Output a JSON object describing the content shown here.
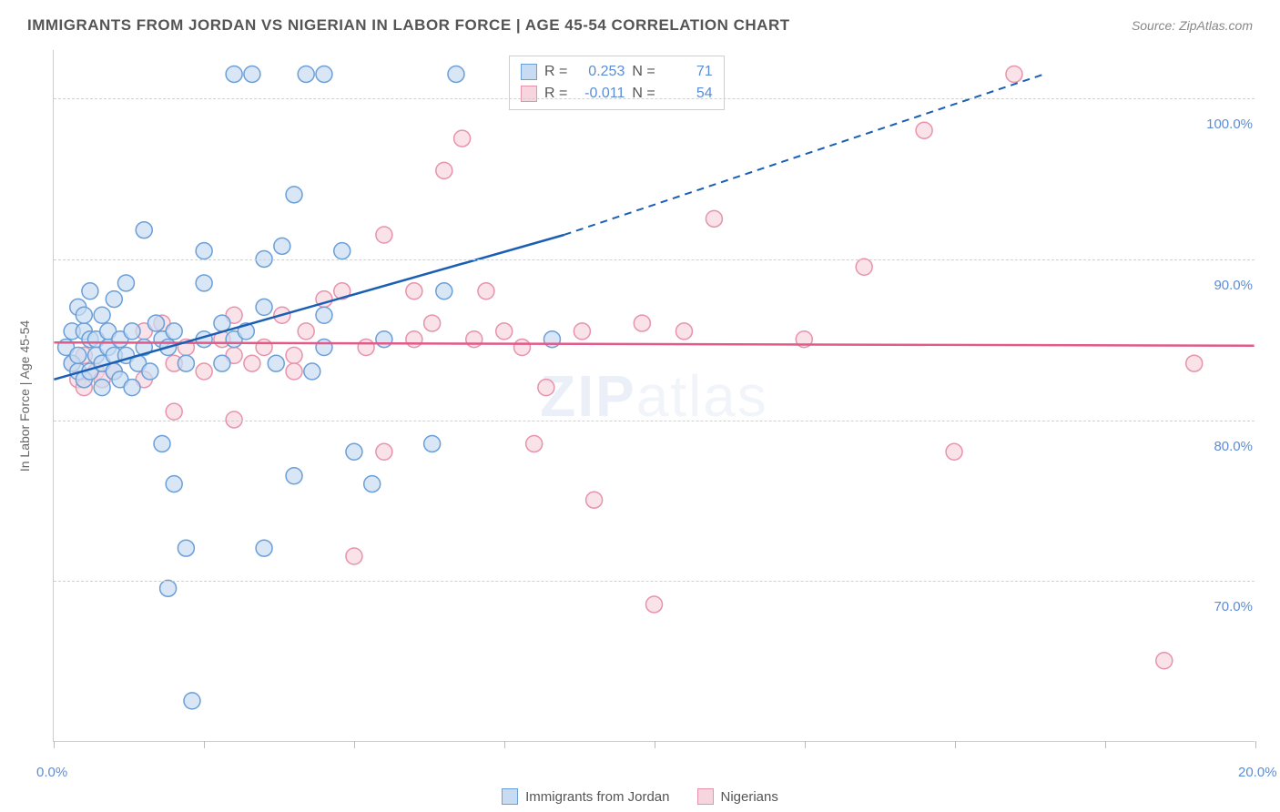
{
  "title": "IMMIGRANTS FROM JORDAN VS NIGERIAN IN LABOR FORCE | AGE 45-54 CORRELATION CHART",
  "source": "Source: ZipAtlas.com",
  "watermark_a": "ZIP",
  "watermark_b": "atlas",
  "ylabel": "In Labor Force | Age 45-54",
  "chart": {
    "type": "scatter",
    "xlim": [
      0,
      20
    ],
    "ylim": [
      60,
      103
    ],
    "x_ticks": [
      0,
      2.5,
      5,
      7.5,
      10,
      12.5,
      15,
      17.5,
      20
    ],
    "x_tick_labels": {
      "0": "0.0%",
      "20": "20.0%"
    },
    "y_gridlines": [
      70,
      80,
      90,
      100
    ],
    "y_tick_labels": {
      "70": "70.0%",
      "80": "80.0%",
      "90": "90.0%",
      "100": "100.0%"
    },
    "background_color": "#ffffff",
    "grid_color": "#d0d0d0",
    "axis_color": "#cccccc",
    "marker_radius": 9,
    "marker_stroke_width": 1.5,
    "trend_line_width": 2.5,
    "series": {
      "jordan": {
        "label": "Immigrants from Jordan",
        "fill": "#c7dbf2",
        "stroke": "#6a9fd8",
        "line_color": "#1a5fb4",
        "R": "0.253",
        "N": "71",
        "trend": {
          "x1": 0,
          "y1": 82.5,
          "x2": 8.5,
          "y2": 91.5,
          "dash_x2": 16.5,
          "dash_y2": 101.5
        },
        "points": [
          [
            0.2,
            84.5
          ],
          [
            0.3,
            83.5
          ],
          [
            0.3,
            85.5
          ],
          [
            0.4,
            87.0
          ],
          [
            0.4,
            83.0
          ],
          [
            0.4,
            84.0
          ],
          [
            0.5,
            85.5
          ],
          [
            0.5,
            86.5
          ],
          [
            0.5,
            82.5
          ],
          [
            0.6,
            85.0
          ],
          [
            0.6,
            88.0
          ],
          [
            0.6,
            83.0
          ],
          [
            0.7,
            85.0
          ],
          [
            0.7,
            84.0
          ],
          [
            0.8,
            86.5
          ],
          [
            0.8,
            83.5
          ],
          [
            0.8,
            82.0
          ],
          [
            0.9,
            84.5
          ],
          [
            0.9,
            85.5
          ],
          [
            1.0,
            84.0
          ],
          [
            1.0,
            87.5
          ],
          [
            1.0,
            83.0
          ],
          [
            1.1,
            82.5
          ],
          [
            1.1,
            85.0
          ],
          [
            1.2,
            84.0
          ],
          [
            1.2,
            88.5
          ],
          [
            1.3,
            85.5
          ],
          [
            1.3,
            82.0
          ],
          [
            1.4,
            83.5
          ],
          [
            1.5,
            84.5
          ],
          [
            1.5,
            91.8
          ],
          [
            1.6,
            83.0
          ],
          [
            1.7,
            86.0
          ],
          [
            1.8,
            85.0
          ],
          [
            1.8,
            78.5
          ],
          [
            1.9,
            84.5
          ],
          [
            1.9,
            69.5
          ],
          [
            2.0,
            85.5
          ],
          [
            2.0,
            76.0
          ],
          [
            2.2,
            83.5
          ],
          [
            2.2,
            72.0
          ],
          [
            2.3,
            62.5
          ],
          [
            2.5,
            85.0
          ],
          [
            2.5,
            88.5
          ],
          [
            2.5,
            90.5
          ],
          [
            2.8,
            86.0
          ],
          [
            2.8,
            83.5
          ],
          [
            3.0,
            85.0
          ],
          [
            3.0,
            101.5
          ],
          [
            3.2,
            85.5
          ],
          [
            3.3,
            101.5
          ],
          [
            3.5,
            87.0
          ],
          [
            3.5,
            90.0
          ],
          [
            3.5,
            72.0
          ],
          [
            3.7,
            83.5
          ],
          [
            3.8,
            90.8
          ],
          [
            4.0,
            94.0
          ],
          [
            4.0,
            76.5
          ],
          [
            4.2,
            101.5
          ],
          [
            4.3,
            83.0
          ],
          [
            4.5,
            84.5
          ],
          [
            4.5,
            86.5
          ],
          [
            4.5,
            101.5
          ],
          [
            4.8,
            90.5
          ],
          [
            5.0,
            78.0
          ],
          [
            5.3,
            76.0
          ],
          [
            5.5,
            85.0
          ],
          [
            6.3,
            78.5
          ],
          [
            6.5,
            88.0
          ],
          [
            6.7,
            101.5
          ],
          [
            8.3,
            85.0
          ]
        ]
      },
      "nigerians": {
        "label": "Nigerians",
        "fill": "#f7d5de",
        "stroke": "#e793ab",
        "line_color": "#e15a8a",
        "R": "-0.011",
        "N": "54",
        "trend": {
          "x1": 0,
          "y1": 84.8,
          "x2": 20,
          "y2": 84.6
        },
        "points": [
          [
            0.3,
            83.5
          ],
          [
            0.4,
            82.5
          ],
          [
            0.5,
            84.0
          ],
          [
            0.5,
            82.0
          ],
          [
            0.7,
            83.0
          ],
          [
            0.8,
            82.5
          ],
          [
            1.0,
            83.0
          ],
          [
            1.5,
            85.5
          ],
          [
            1.5,
            82.5
          ],
          [
            1.8,
            86.0
          ],
          [
            2.0,
            83.5
          ],
          [
            2.2,
            84.5
          ],
          [
            2.5,
            83.0
          ],
          [
            2.8,
            85.0
          ],
          [
            3.0,
            84.0
          ],
          [
            3.0,
            80.0
          ],
          [
            3.3,
            83.5
          ],
          [
            3.5,
            84.5
          ],
          [
            3.8,
            86.5
          ],
          [
            4.0,
            84.0
          ],
          [
            4.0,
            83.0
          ],
          [
            4.2,
            85.5
          ],
          [
            4.5,
            87.5
          ],
          [
            4.8,
            88.0
          ],
          [
            5.0,
            71.5
          ],
          [
            5.2,
            84.5
          ],
          [
            5.5,
            78.0
          ],
          [
            5.5,
            91.5
          ],
          [
            6.0,
            88.0
          ],
          [
            6.0,
            85.0
          ],
          [
            6.3,
            86.0
          ],
          [
            6.5,
            95.5
          ],
          [
            6.8,
            97.5
          ],
          [
            7.0,
            85.0
          ],
          [
            7.2,
            88.0
          ],
          [
            7.5,
            85.5
          ],
          [
            7.8,
            84.5
          ],
          [
            8.0,
            78.5
          ],
          [
            8.2,
            82.0
          ],
          [
            8.8,
            85.5
          ],
          [
            9.0,
            75.0
          ],
          [
            9.8,
            86.0
          ],
          [
            10.0,
            68.5
          ],
          [
            10.5,
            85.5
          ],
          [
            11.0,
            92.5
          ],
          [
            12.5,
            85.0
          ],
          [
            13.5,
            89.5
          ],
          [
            14.5,
            98.0
          ],
          [
            15.0,
            78.0
          ],
          [
            16.0,
            101.5
          ],
          [
            18.5,
            65.0
          ],
          [
            19.0,
            83.5
          ],
          [
            2.0,
            80.5
          ],
          [
            3.0,
            86.5
          ]
        ]
      }
    }
  },
  "legend_stats_labels": {
    "R": "R =",
    "N": "N ="
  }
}
